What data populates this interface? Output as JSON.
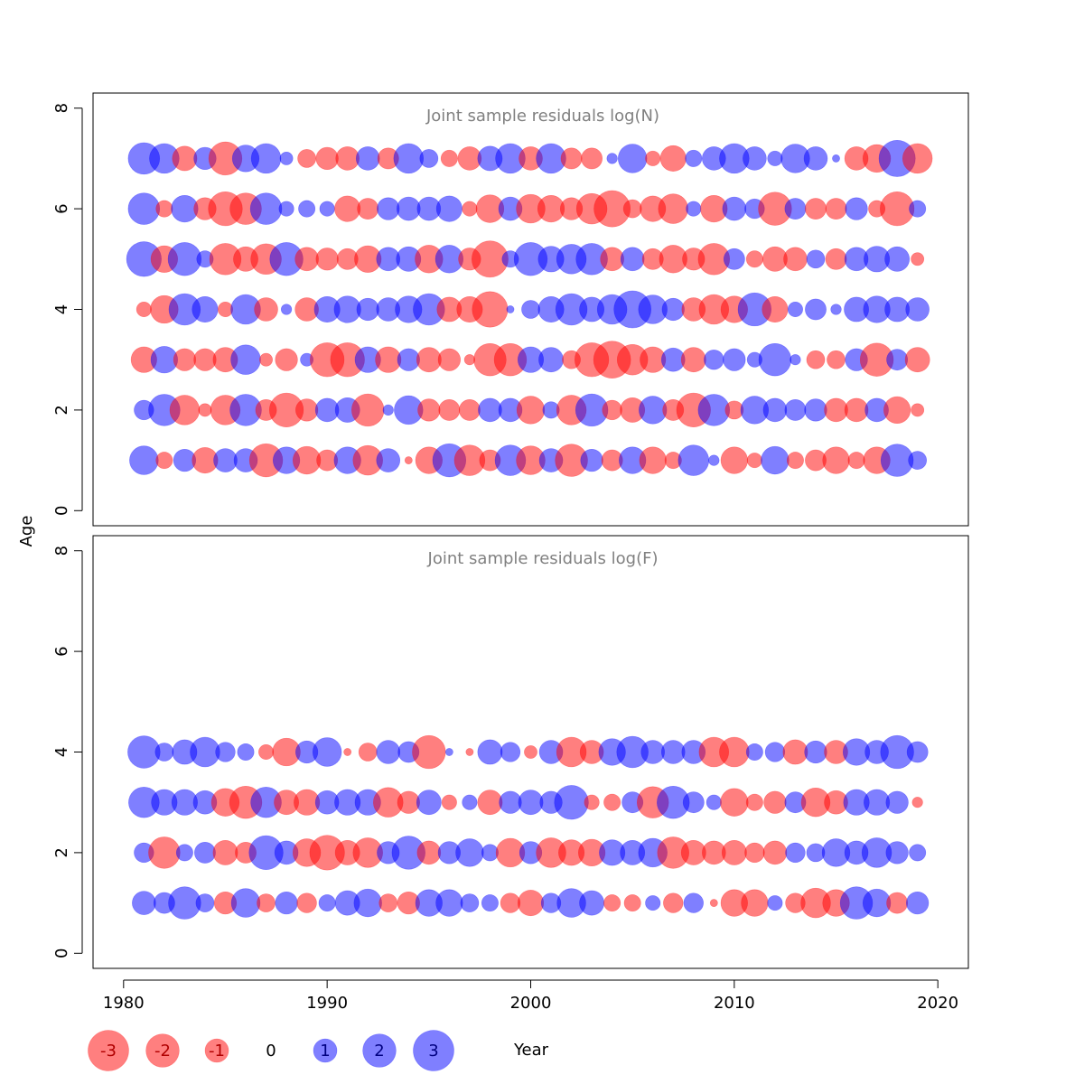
{
  "chart_data": {
    "type": "scatter",
    "xlabel": "Year",
    "ylabel": "Age",
    "xlim": [
      1978.5,
      2021.5
    ],
    "xticks": [
      1980,
      1990,
      2000,
      2010,
      2020
    ],
    "ylim": [
      -0.3,
      8.3
    ],
    "yticks": [
      0,
      2,
      4,
      6,
      8
    ],
    "colors": {
      "negative": "#ff0000",
      "positive": "#0000ff",
      "alpha": 0.5
    },
    "legend": {
      "placement": "bottom",
      "items": [
        {
          "label": "-3",
          "value": -3
        },
        {
          "label": "-2",
          "value": -2
        },
        {
          "label": "-1",
          "value": -1
        },
        {
          "label": "0",
          "value": 0
        },
        {
          "label": "1",
          "value": 1
        },
        {
          "label": "2",
          "value": 2
        },
        {
          "label": "3",
          "value": 3
        }
      ]
    },
    "panels": [
      {
        "title": "Joint sample residuals log(N)",
        "start_year": 1981,
        "ages": [
          {
            "age": 7,
            "residuals": [
              1.8,
              1.6,
              -1.1,
              0.9,
              -2.0,
              1.3,
              1.6,
              0.3,
              -0.6,
              -0.9,
              -1.0,
              1.0,
              -0.8,
              1.6,
              0.6,
              -0.5,
              -1.0,
              1.1,
              1.6,
              -1.0,
              1.6,
              -0.8,
              -0.8,
              0.2,
              1.5,
              -0.4,
              -1.2,
              0.5,
              1.0,
              1.6,
              1.0,
              0.4,
              1.5,
              1.0,
              0.1,
              -1.0,
              -1.4,
              2.4,
              -1.6
            ]
          },
          {
            "age": 6,
            "residuals": [
              1.8,
              -0.5,
              1.3,
              -0.9,
              -2.1,
              -1.8,
              1.8,
              0.4,
              0.5,
              0.4,
              -1.2,
              -0.8,
              0.9,
              1.0,
              1.0,
              1.2,
              -0.4,
              -1.4,
              1.0,
              -1.5,
              -1.3,
              -0.9,
              -1.7,
              -2.4,
              -0.6,
              -1.2,
              -1.6,
              0.4,
              -1.3,
              1.0,
              0.7,
              -2.0,
              0.8,
              -0.8,
              -0.8,
              0.9,
              -0.5,
              -2.1,
              0.5
            ]
          },
          {
            "age": 5,
            "residuals": [
              2.2,
              -1.3,
              2.0,
              0.5,
              -1.8,
              -1.1,
              -1.7,
              2.0,
              -1.0,
              -0.9,
              -0.8,
              -1.3,
              1.0,
              1.1,
              -1.4,
              1.4,
              -0.9,
              -2.4,
              0.5,
              2.0,
              1.2,
              1.6,
              1.8,
              -1.0,
              1.0,
              -0.8,
              -1.4,
              -0.9,
              -1.8,
              0.8,
              -0.5,
              -1.1,
              -1.0,
              0.6,
              -0.8,
              1.0,
              1.2,
              1.1,
              -0.3
            ]
          },
          {
            "age": 4,
            "residuals": [
              -0.4,
              -1.4,
              1.8,
              1.2,
              -0.4,
              1.6,
              -1.0,
              0.2,
              -1.0,
              1.2,
              1.3,
              0.9,
              1.0,
              1.3,
              1.8,
              -1.1,
              -1.2,
              -2.3,
              0.1,
              0.6,
              1.2,
              1.8,
              1.1,
              1.6,
              2.5,
              1.5,
              0.9,
              -1.0,
              -1.6,
              -1.3,
              2.0,
              -1.2,
              0.4,
              0.8,
              0.2,
              1.1,
              1.3,
              1.1,
              1.0
            ]
          },
          {
            "age": 3,
            "residuals": [
              -1.2,
              1.3,
              -0.9,
              -0.9,
              -1.1,
              1.6,
              -0.3,
              -0.9,
              0.3,
              -2.1,
              -2.1,
              1.2,
              -1.2,
              0.9,
              -1.1,
              -0.9,
              -0.2,
              -1.9,
              -1.9,
              1.2,
              1.1,
              -0.6,
              -2.1,
              -2.5,
              -1.7,
              -1.2,
              1.0,
              -1.1,
              0.7,
              0.9,
              0.4,
              1.9,
              0.2,
              -0.6,
              -0.6,
              0.9,
              -2.0,
              0.8,
              -1.1
            ]
          },
          {
            "age": 2,
            "residuals": [
              0.7,
              1.8,
              -1.6,
              -0.3,
              -1.6,
              1.8,
              -0.8,
              -2.1,
              -0.9,
              1.0,
              1.1,
              -1.9,
              0.2,
              1.5,
              -0.9,
              -0.8,
              -0.8,
              1.0,
              1.0,
              -1.4,
              0.5,
              -1.6,
              1.9,
              -0.7,
              -1.1,
              1.4,
              -0.8,
              -2.1,
              1.8,
              -0.6,
              1.4,
              1.0,
              0.8,
              0.9,
              -1.0,
              -1.0,
              1.0,
              -1.3,
              -0.3
            ]
          },
          {
            "age": 1,
            "residuals": [
              1.5,
              -0.5,
              0.9,
              -1.2,
              1.0,
              1.0,
              -2.0,
              1.3,
              -1.4,
              -0.8,
              1.3,
              -1.6,
              1.0,
              -0.1,
              -1.3,
              2.0,
              -1.7,
              -0.8,
              1.7,
              -1.5,
              1.0,
              -1.9,
              0.9,
              -0.8,
              1.3,
              -1.3,
              -0.5,
              1.7,
              0.2,
              -1.3,
              -0.4,
              1.4,
              -0.5,
              -0.8,
              -1.3,
              -0.5,
              -1.3,
              1.9,
              0.6
            ]
          }
        ]
      },
      {
        "title": "Joint sample residuals log(F)",
        "start_year": 1981,
        "ages": [
          {
            "age": 4,
            "residuals": [
              1.9,
              0.6,
              1.1,
              1.6,
              0.7,
              0.5,
              -0.4,
              -1.4,
              0.9,
              1.5,
              -0.1,
              -0.6,
              1.0,
              0.8,
              -2.0,
              0.1,
              -0.1,
              1.1,
              0.7,
              -0.3,
              1.0,
              -1.6,
              -1.0,
              1.3,
              1.8,
              1.0,
              1.0,
              1.0,
              -1.6,
              -1.6,
              0.5,
              0.7,
              -1.1,
              0.9,
              -1.0,
              1.3,
              1.0,
              2.0,
              0.8
            ]
          },
          {
            "age": 3,
            "residuals": [
              1.7,
              1.2,
              1.2,
              1.0,
              -1.4,
              -1.9,
              1.7,
              -1.1,
              -1.2,
              1.0,
              1.2,
              1.2,
              -1.6,
              -0.9,
              1.1,
              -0.4,
              0.4,
              -1.1,
              0.9,
              1.1,
              0.9,
              2.1,
              -0.4,
              -0.5,
              0.8,
              -1.8,
              1.9,
              0.8,
              0.4,
              -1.4,
              -0.5,
              -0.9,
              0.8,
              -1.5,
              -1.0,
              1.2,
              1.2,
              0.9,
              -0.2
            ]
          },
          {
            "age": 2,
            "residuals": [
              0.7,
              -1.8,
              0.5,
              0.8,
              -1.1,
              -0.8,
              2.1,
              1.0,
              -1.4,
              -2.2,
              -1.1,
              -1.6,
              0.9,
              2.0,
              -1.0,
              0.9,
              1.4,
              0.5,
              -1.5,
              0.9,
              -1.6,
              -1.2,
              -1.3,
              1.2,
              1.1,
              1.5,
              -1.8,
              -1.1,
              -1.0,
              -1.1,
              -0.7,
              -1.0,
              0.7,
              0.6,
              1.4,
              1.0,
              1.6,
              0.9,
              0.5
            ]
          },
          {
            "age": 1,
            "residuals": [
              1.0,
              0.8,
              1.9,
              0.6,
              -0.9,
              1.5,
              -0.6,
              0.9,
              -0.7,
              0.5,
              1.1,
              1.4,
              -0.6,
              -0.9,
              1.3,
              1.3,
              0.6,
              0.5,
              -0.7,
              -1.2,
              0.7,
              1.5,
              1.1,
              -0.5,
              -0.5,
              0.4,
              -0.7,
              0.7,
              -0.1,
              -1.3,
              -1.3,
              0.4,
              -0.7,
              -1.6,
              -1.3,
              1.9,
              1.4,
              -0.8,
              0.9
            ]
          }
        ]
      }
    ]
  }
}
